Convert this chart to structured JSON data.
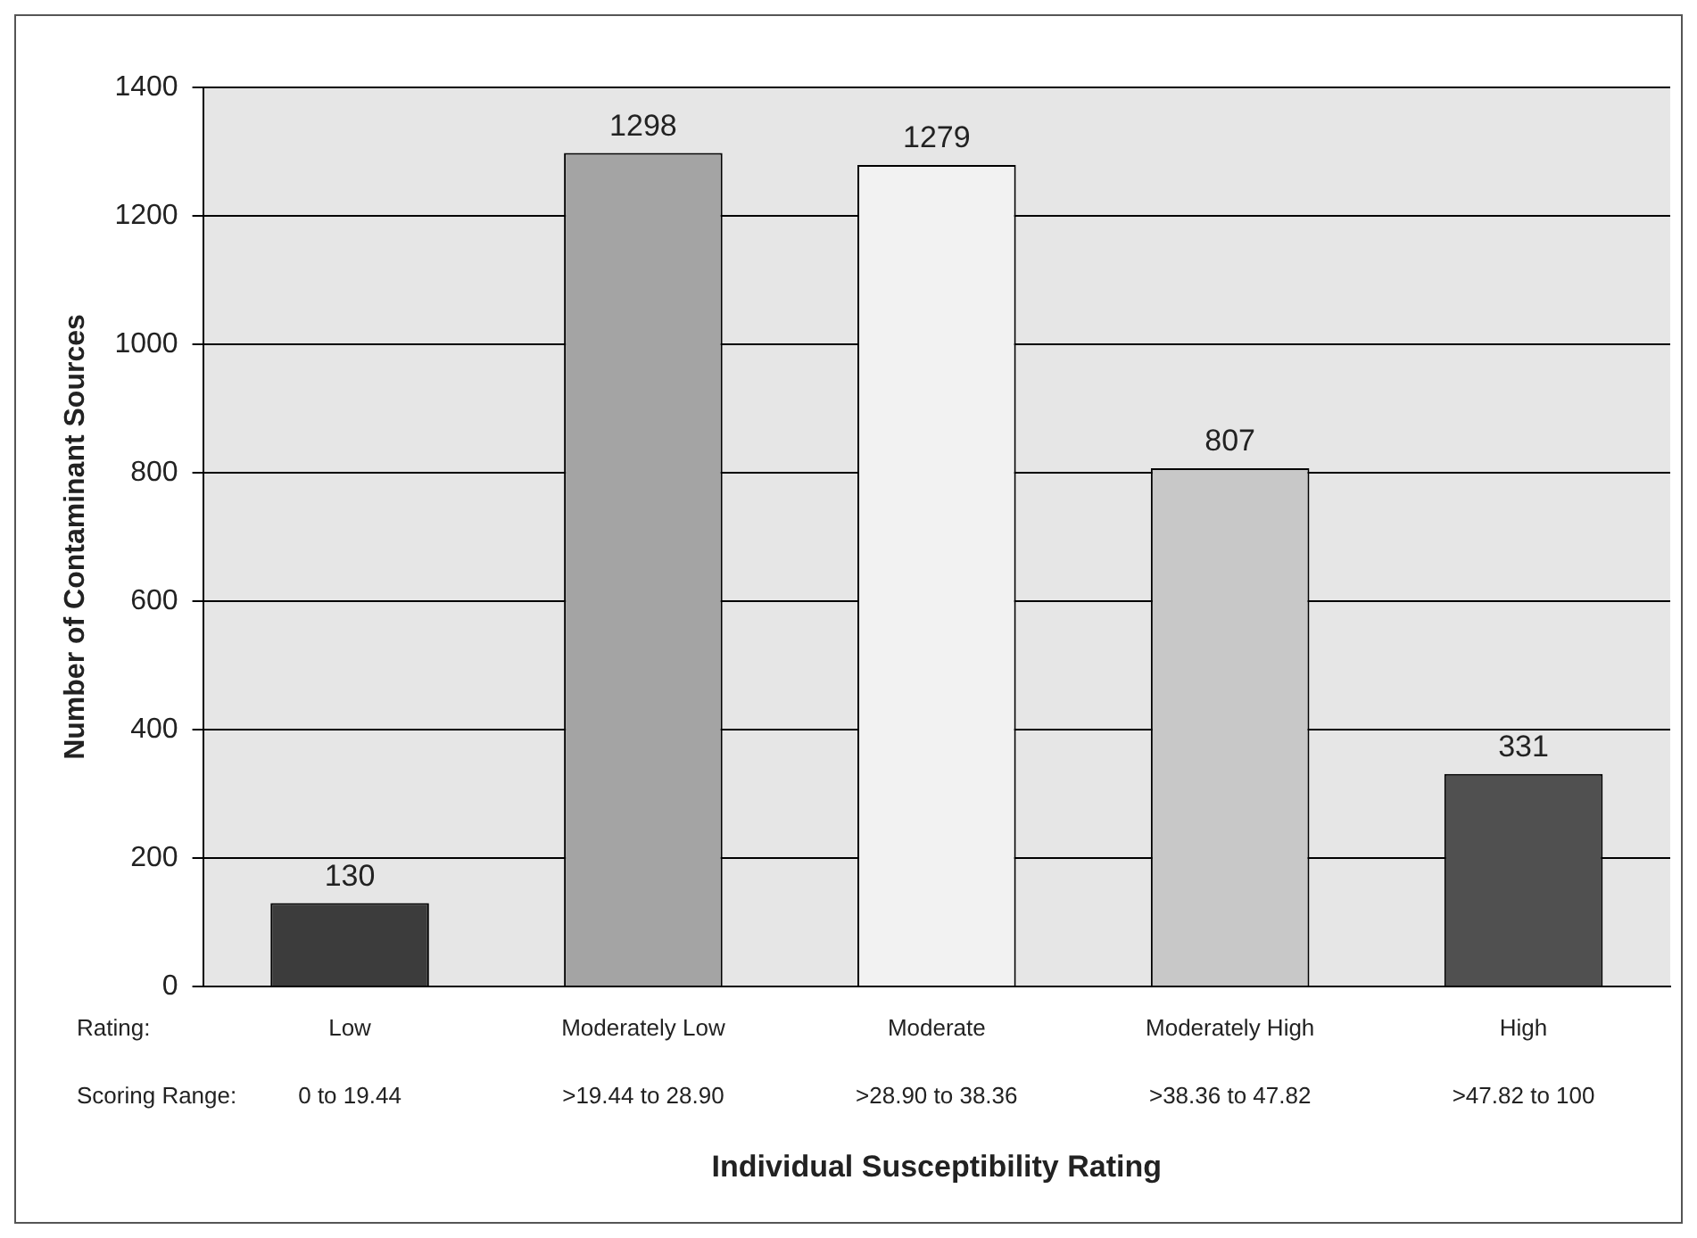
{
  "chart_data": {
    "type": "bar",
    "xlabel": "Individual Susceptibility Rating",
    "ylabel": "Number of Contaminant Sources",
    "categories": [
      "Low",
      "Moderately Low",
      "Moderate",
      "Moderately High",
      "High"
    ],
    "values": [
      130,
      1298,
      1279,
      807,
      331
    ],
    "colors": [
      "#3c3c3c",
      "#a4a4a4",
      "#f2f2f2",
      "#c8c8c8",
      "#505050"
    ],
    "ylim": [
      0,
      1400
    ],
    "yticks": [
      0,
      200,
      400,
      600,
      800,
      1000,
      1200,
      1400
    ],
    "grid": "y",
    "data_labels": true,
    "annotations": [
      "Rating:",
      "Scoring Range:",
      "0 to 19.44",
      ">19.44 to 28.90",
      ">28.90 to 38.36",
      ">38.36 to 47.82",
      ">47.82 to 100"
    ]
  }
}
